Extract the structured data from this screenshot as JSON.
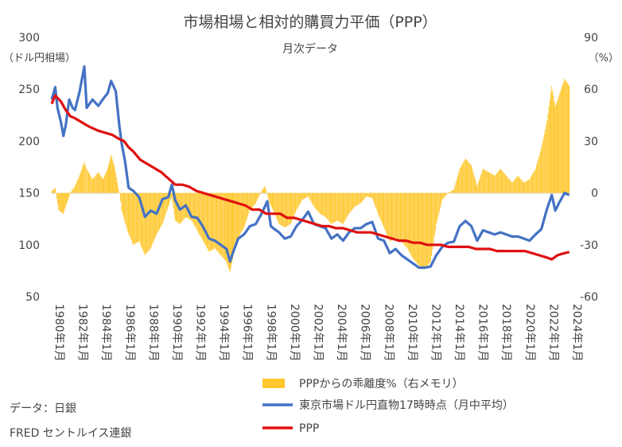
{
  "chart_data": {
    "type": "line",
    "title": "市場相場と相対的購買力平価（PPP）",
    "subtitle": "月次データ",
    "left_axis": {
      "label_line1": "300",
      "label_unit": "（ドル円相場）",
      "ticks": [
        "300",
        "250",
        "200",
        "150",
        "100",
        "50"
      ],
      "range": [
        50,
        300
      ]
    },
    "right_axis": {
      "label_line1": "90",
      "label_unit": "（%）",
      "ticks": [
        "90",
        "60",
        "30",
        "0",
        "-30",
        "-60"
      ],
      "range": [
        -60,
        90
      ]
    },
    "x_ticks": [
      "1980年1月",
      "1982年1月",
      "1984年1月",
      "1986年1月",
      "1988年1月",
      "1990年1月",
      "1992年1月",
      "1994年1月",
      "1996年1月",
      "1998年1月",
      "2000年1月",
      "2002年1月",
      "2004年1月",
      "2006年1月",
      "2008年1月",
      "2010年1月",
      "2012年1月",
      "2014年1月",
      "2016年1月",
      "2018年1月",
      "2020年1月",
      "2022年1月",
      "2024年1月"
    ],
    "x_range": [
      1980.0,
      2024.42
    ],
    "series": [
      {
        "name": "PPPからの乖離度%（右メモリ）",
        "kind": "bar",
        "axis": "right",
        "color": "#FFC72C",
        "points": [
          [
            1980.0,
            1
          ],
          [
            1980.3,
            3
          ],
          [
            1980.6,
            -10
          ],
          [
            1981.0,
            -12
          ],
          [
            1981.3,
            -6
          ],
          [
            1981.6,
            0
          ],
          [
            1982.0,
            4
          ],
          [
            1982.5,
            12
          ],
          [
            1982.8,
            18
          ],
          [
            1983.0,
            14
          ],
          [
            1983.5,
            8
          ],
          [
            1984.0,
            12
          ],
          [
            1984.4,
            8
          ],
          [
            1984.8,
            14
          ],
          [
            1985.1,
            22
          ],
          [
            1985.4,
            15
          ],
          [
            1985.8,
            0
          ],
          [
            1986.0,
            -10
          ],
          [
            1986.5,
            -22
          ],
          [
            1987.0,
            -30
          ],
          [
            1987.5,
            -28
          ],
          [
            1988.0,
            -36
          ],
          [
            1988.5,
            -32
          ],
          [
            1989.0,
            -24
          ],
          [
            1989.5,
            -18
          ],
          [
            1990.0,
            -8
          ],
          [
            1990.3,
            -2
          ],
          [
            1990.6,
            -16
          ],
          [
            1991.0,
            -18
          ],
          [
            1991.5,
            -14
          ],
          [
            1992.0,
            -16
          ],
          [
            1992.5,
            -22
          ],
          [
            1993.0,
            -28
          ],
          [
            1993.5,
            -34
          ],
          [
            1994.0,
            -32
          ],
          [
            1994.5,
            -36
          ],
          [
            1995.0,
            -40
          ],
          [
            1995.3,
            -46
          ],
          [
            1995.6,
            -36
          ],
          [
            1996.0,
            -26
          ],
          [
            1996.5,
            -20
          ],
          [
            1997.0,
            -10
          ],
          [
            1997.5,
            -6
          ],
          [
            1998.0,
            1
          ],
          [
            1998.3,
            4
          ],
          [
            1998.7,
            -6
          ],
          [
            1999.0,
            -10
          ],
          [
            1999.5,
            -18
          ],
          [
            2000.0,
            -20
          ],
          [
            2000.5,
            -18
          ],
          [
            2001.0,
            -10
          ],
          [
            2001.5,
            -4
          ],
          [
            2002.0,
            -2
          ],
          [
            2002.5,
            -8
          ],
          [
            2003.0,
            -12
          ],
          [
            2003.5,
            -14
          ],
          [
            2004.0,
            -18
          ],
          [
            2004.5,
            -16
          ],
          [
            2005.0,
            -18
          ],
          [
            2005.5,
            -12
          ],
          [
            2006.0,
            -8
          ],
          [
            2006.5,
            -6
          ],
          [
            2007.0,
            -2
          ],
          [
            2007.5,
            -3
          ],
          [
            2008.0,
            -12
          ],
          [
            2008.5,
            -20
          ],
          [
            2009.0,
            -28
          ],
          [
            2009.5,
            -26
          ],
          [
            2010.0,
            -28
          ],
          [
            2010.5,
            -32
          ],
          [
            2011.0,
            -38
          ],
          [
            2011.5,
            -42
          ],
          [
            2012.0,
            -44
          ],
          [
            2012.5,
            -40
          ],
          [
            2013.0,
            -18
          ],
          [
            2013.5,
            -4
          ],
          [
            2014.0,
            0
          ],
          [
            2014.5,
            2
          ],
          [
            2015.0,
            14
          ],
          [
            2015.5,
            20
          ],
          [
            2016.0,
            16
          ],
          [
            2016.5,
            4
          ],
          [
            2017.0,
            14
          ],
          [
            2017.5,
            12
          ],
          [
            2018.0,
            10
          ],
          [
            2018.5,
            14
          ],
          [
            2019.0,
            10
          ],
          [
            2019.5,
            6
          ],
          [
            2020.0,
            10
          ],
          [
            2020.5,
            6
          ],
          [
            2021.0,
            8
          ],
          [
            2021.5,
            14
          ],
          [
            2022.0,
            26
          ],
          [
            2022.5,
            42
          ],
          [
            2022.9,
            62
          ],
          [
            2023.2,
            50
          ],
          [
            2023.6,
            58
          ],
          [
            2024.0,
            66
          ],
          [
            2024.4,
            62
          ]
        ]
      },
      {
        "name": "東京市場ドル円直物17時時点（月中平均）",
        "kind": "line",
        "axis": "left",
        "color": "#4472C4",
        "points": [
          [
            1980.0,
            240
          ],
          [
            1980.3,
            252
          ],
          [
            1980.5,
            232
          ],
          [
            1980.8,
            218
          ],
          [
            1981.0,
            205
          ],
          [
            1981.2,
            215
          ],
          [
            1981.5,
            240
          ],
          [
            1981.8,
            232
          ],
          [
            1982.0,
            230
          ],
          [
            1982.4,
            248
          ],
          [
            1982.8,
            272
          ],
          [
            1983.0,
            232
          ],
          [
            1983.5,
            240
          ],
          [
            1984.0,
            234
          ],
          [
            1984.5,
            242
          ],
          [
            1984.8,
            246
          ],
          [
            1985.1,
            258
          ],
          [
            1985.5,
            248
          ],
          [
            1985.8,
            215
          ],
          [
            1986.0,
            198
          ],
          [
            1986.3,
            180
          ],
          [
            1986.6,
            155
          ],
          [
            1987.0,
            152
          ],
          [
            1987.5,
            146
          ],
          [
            1988.0,
            127
          ],
          [
            1988.5,
            133
          ],
          [
            1989.0,
            130
          ],
          [
            1989.5,
            144
          ],
          [
            1990.0,
            146
          ],
          [
            1990.3,
            158
          ],
          [
            1990.6,
            143
          ],
          [
            1991.0,
            134
          ],
          [
            1991.5,
            138
          ],
          [
            1992.0,
            127
          ],
          [
            1992.5,
            126
          ],
          [
            1993.0,
            117
          ],
          [
            1993.5,
            106
          ],
          [
            1994.0,
            104
          ],
          [
            1994.5,
            100
          ],
          [
            1995.0,
            96
          ],
          [
            1995.3,
            84
          ],
          [
            1995.6,
            94
          ],
          [
            1996.0,
            106
          ],
          [
            1996.5,
            110
          ],
          [
            1997.0,
            118
          ],
          [
            1997.5,
            120
          ],
          [
            1998.0,
            130
          ],
          [
            1998.5,
            142
          ],
          [
            1998.8,
            118
          ],
          [
            1999.0,
            116
          ],
          [
            1999.5,
            112
          ],
          [
            2000.0,
            106
          ],
          [
            2000.5,
            108
          ],
          [
            2001.0,
            118
          ],
          [
            2001.5,
            124
          ],
          [
            2002.0,
            132
          ],
          [
            2002.5,
            120
          ],
          [
            2003.0,
            118
          ],
          [
            2003.5,
            116
          ],
          [
            2004.0,
            106
          ],
          [
            2004.5,
            110
          ],
          [
            2005.0,
            104
          ],
          [
            2005.5,
            112
          ],
          [
            2006.0,
            116
          ],
          [
            2006.5,
            116
          ],
          [
            2007.0,
            120
          ],
          [
            2007.5,
            122
          ],
          [
            2008.0,
            106
          ],
          [
            2008.5,
            104
          ],
          [
            2009.0,
            92
          ],
          [
            2009.5,
            96
          ],
          [
            2010.0,
            90
          ],
          [
            2010.5,
            86
          ],
          [
            2011.0,
            82
          ],
          [
            2011.5,
            78
          ],
          [
            2012.0,
            78
          ],
          [
            2012.5,
            79
          ],
          [
            2013.0,
            90
          ],
          [
            2013.5,
            98
          ],
          [
            2014.0,
            102
          ],
          [
            2014.5,
            103
          ],
          [
            2015.0,
            118
          ],
          [
            2015.5,
            123
          ],
          [
            2016.0,
            118
          ],
          [
            2016.5,
            104
          ],
          [
            2017.0,
            114
          ],
          [
            2017.5,
            112
          ],
          [
            2018.0,
            110
          ],
          [
            2018.5,
            112
          ],
          [
            2019.0,
            110
          ],
          [
            2019.5,
            108
          ],
          [
            2020.0,
            108
          ],
          [
            2020.5,
            106
          ],
          [
            2021.0,
            104
          ],
          [
            2021.5,
            110
          ],
          [
            2022.0,
            115
          ],
          [
            2022.5,
            135
          ],
          [
            2022.9,
            148
          ],
          [
            2023.2,
            133
          ],
          [
            2023.6,
            142
          ],
          [
            2024.0,
            150
          ],
          [
            2024.4,
            148
          ]
        ]
      },
      {
        "name": "PPP",
        "kind": "line",
        "axis": "left",
        "color": "#E01010",
        "points": [
          [
            1980.0,
            236
          ],
          [
            1980.3,
            244
          ],
          [
            1980.8,
            238
          ],
          [
            1981.2,
            230
          ],
          [
            1981.6,
            224
          ],
          [
            1982.0,
            222
          ],
          [
            1982.6,
            218
          ],
          [
            1983.2,
            214
          ],
          [
            1984.0,
            210
          ],
          [
            1984.6,
            208
          ],
          [
            1985.2,
            206
          ],
          [
            1985.8,
            202
          ],
          [
            1986.2,
            200
          ],
          [
            1986.6,
            194
          ],
          [
            1987.0,
            190
          ],
          [
            1987.6,
            182
          ],
          [
            1988.2,
            178
          ],
          [
            1988.8,
            174
          ],
          [
            1989.4,
            170
          ],
          [
            1990.0,
            164
          ],
          [
            1990.6,
            158
          ],
          [
            1991.2,
            158
          ],
          [
            1991.8,
            156
          ],
          [
            1992.4,
            152
          ],
          [
            1993.0,
            150
          ],
          [
            1993.6,
            148
          ],
          [
            1994.2,
            146
          ],
          [
            1994.8,
            144
          ],
          [
            1995.4,
            142
          ],
          [
            1996.0,
            140
          ],
          [
            1996.6,
            138
          ],
          [
            1997.2,
            134
          ],
          [
            1997.8,
            134
          ],
          [
            1998.4,
            130
          ],
          [
            1999.0,
            130
          ],
          [
            1999.6,
            130
          ],
          [
            2000.2,
            126
          ],
          [
            2000.8,
            126
          ],
          [
            2001.4,
            124
          ],
          [
            2002.0,
            122
          ],
          [
            2002.6,
            120
          ],
          [
            2003.2,
            118
          ],
          [
            2003.8,
            118
          ],
          [
            2004.4,
            116
          ],
          [
            2005.0,
            116
          ],
          [
            2005.6,
            114
          ],
          [
            2006.2,
            112
          ],
          [
            2006.8,
            112
          ],
          [
            2007.4,
            112
          ],
          [
            2008.0,
            110
          ],
          [
            2008.6,
            108
          ],
          [
            2009.2,
            106
          ],
          [
            2009.8,
            104
          ],
          [
            2010.4,
            104
          ],
          [
            2011.0,
            102
          ],
          [
            2011.6,
            102
          ],
          [
            2012.2,
            100
          ],
          [
            2012.8,
            100
          ],
          [
            2013.4,
            100
          ],
          [
            2014.0,
            98
          ],
          [
            2014.6,
            98
          ],
          [
            2015.2,
            98
          ],
          [
            2015.8,
            98
          ],
          [
            2016.4,
            96
          ],
          [
            2017.0,
            96
          ],
          [
            2017.6,
            96
          ],
          [
            2018.2,
            94
          ],
          [
            2018.8,
            94
          ],
          [
            2019.4,
            94
          ],
          [
            2020.0,
            94
          ],
          [
            2020.6,
            94
          ],
          [
            2021.2,
            92
          ],
          [
            2021.8,
            90
          ],
          [
            2022.4,
            88
          ],
          [
            2022.9,
            86
          ],
          [
            2023.4,
            90
          ],
          [
            2024.0,
            92
          ],
          [
            2024.4,
            93
          ]
        ]
      }
    ],
    "legend": [
      "PPPからの乖離度%（右メモリ）",
      "東京市場ドル円直物17時時点（月中平均）",
      "PPP"
    ],
    "source_line1": "データ：日銀",
    "source_line2": "FRED セントルイス連銀"
  }
}
